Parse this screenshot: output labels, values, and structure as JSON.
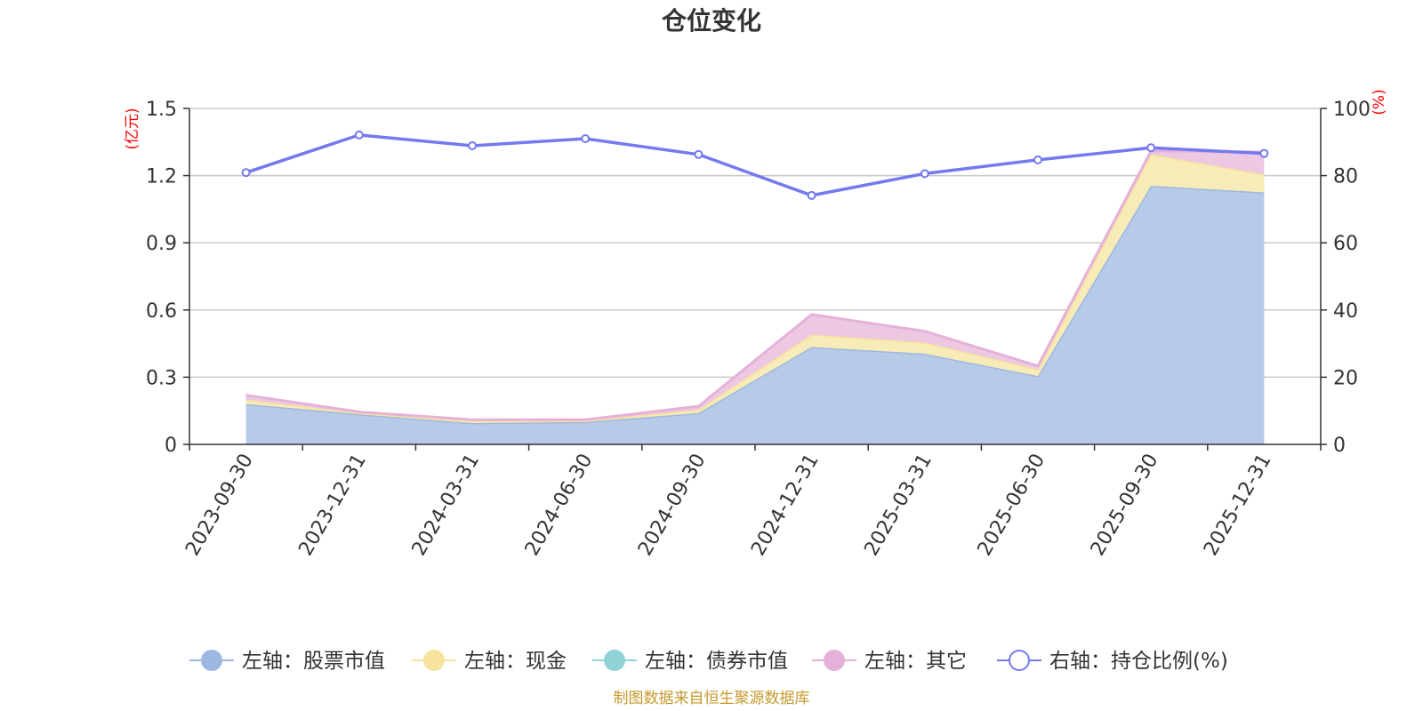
{
  "chart_data": {
    "type": "area",
    "title": "仓位变化",
    "categories": [
      "2023-09-30",
      "2023-12-31",
      "2024-03-31",
      "2024-06-30",
      "2024-09-30",
      "2024-12-31",
      "2025-03-31",
      "2025-06-30",
      "2025-09-30",
      "2025-12-31"
    ],
    "left_axis": {
      "unit_label": "(亿元)",
      "ylim": [
        0,
        1.5
      ],
      "ticks": [
        "0",
        "0.3",
        "0.6",
        "0.9",
        "1.2",
        "1.5"
      ],
      "tick_values": [
        0,
        0.3,
        0.6,
        0.9,
        1.2,
        1.5
      ]
    },
    "right_axis": {
      "unit_label": "(%)",
      "ylim": [
        0,
        100
      ],
      "ticks": [
        "0",
        "20",
        "40",
        "60",
        "80",
        "100"
      ],
      "tick_values": [
        0,
        20,
        40,
        60,
        80,
        100
      ]
    },
    "series": [
      {
        "name": "左轴：股票市值",
        "axis": "left",
        "stacked": true,
        "color": "#9db8e0",
        "fill": "#b7cbe9",
        "values": [
          0.18,
          0.135,
          0.095,
          0.1,
          0.14,
          0.435,
          0.405,
          0.305,
          1.155,
          1.125
        ]
      },
      {
        "name": "左轴：现金",
        "axis": "left",
        "stacked": true,
        "color": "#f7e39c",
        "fill": "#f7ebb7",
        "values": [
          0.02,
          0.005,
          0.01,
          0.005,
          0.015,
          0.055,
          0.05,
          0.03,
          0.14,
          0.08
        ]
      },
      {
        "name": "左轴：债券市值",
        "axis": "left",
        "stacked": true,
        "color": "#8fd3d6",
        "fill": "#b4e3e4",
        "values": [
          0,
          0,
          0,
          0,
          0,
          0,
          0,
          0,
          0,
          0
        ]
      },
      {
        "name": "左轴：其它",
        "axis": "left",
        "stacked": true,
        "color": "#e6b1d8",
        "fill": "#ecc8e3",
        "values": [
          0.02,
          0.005,
          0.005,
          0.005,
          0.015,
          0.09,
          0.05,
          0.015,
          0.015,
          0.1
        ]
      },
      {
        "name": "右轴：持仓比例(%)",
        "axis": "right",
        "type": "line",
        "color": "#7479f0",
        "values": [
          80.9,
          92.1,
          88.9,
          91.0,
          86.3,
          74.1,
          80.6,
          84.7,
          88.3,
          86.6
        ]
      }
    ],
    "source_note": "制图数据来自恒生聚源数据库"
  }
}
